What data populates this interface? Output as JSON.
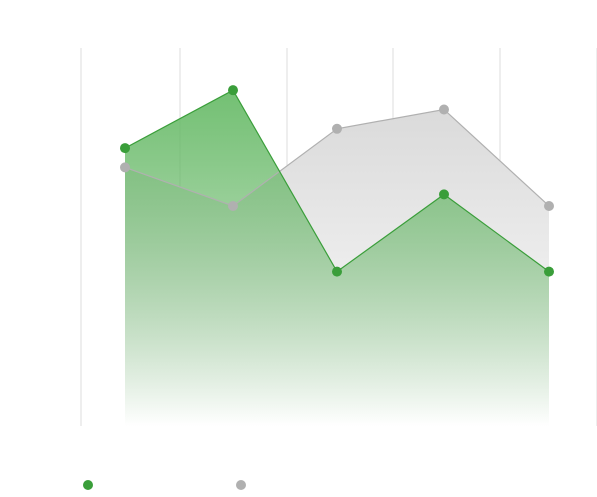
{
  "chart_data": {
    "type": "area",
    "title": "",
    "xlabel": "",
    "ylabel": "",
    "grid": {
      "vertical": true,
      "horizontal": false
    },
    "legend": "bottom-left",
    "categories": [
      "",
      "",
      "",
      "",
      ""
    ],
    "ylim": [
      0,
      100
    ],
    "series": [
      {
        "name": "",
        "color": "#3a9e3a",
        "fill_top": "#7cc47c",
        "values": [
          72,
          87,
          40,
          60,
          40
        ]
      },
      {
        "name": "",
        "color": "#b0b0b0",
        "fill_top": "#dcdcdc",
        "values": [
          67,
          57,
          77,
          82,
          57
        ]
      }
    ]
  }
}
